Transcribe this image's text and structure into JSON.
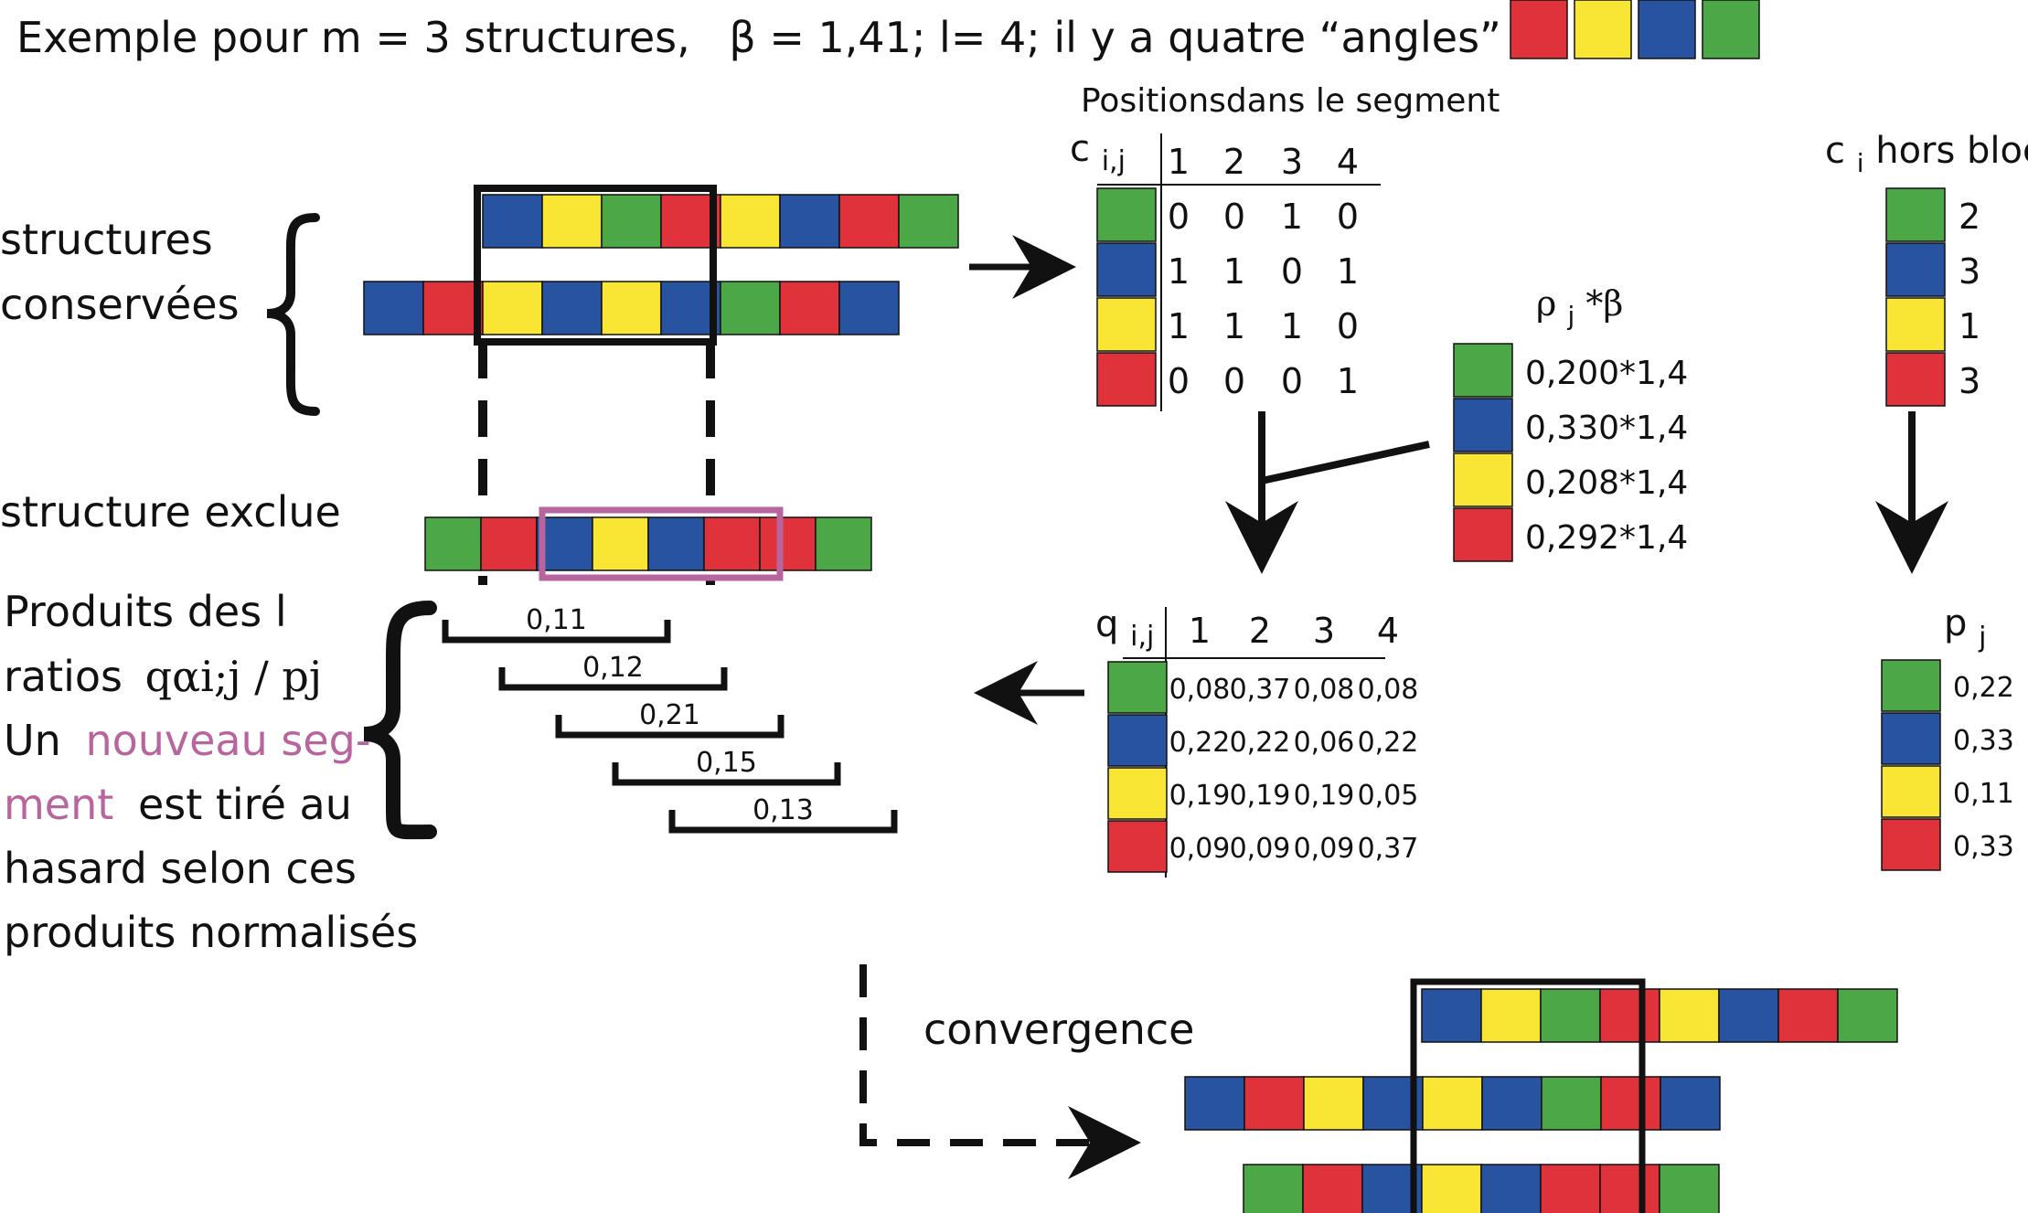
{
  "header": {
    "prefix": "Exemple pour m = 3 structures,",
    "beta_part": "β = 1,41; l= 4; il y a quatre “angles” :"
  },
  "colors": {
    "G": "#4ca846",
    "B": "#2853a0",
    "Y": "#f8e534",
    "R": "#e0323a",
    "pink": "#b8649e",
    "black": "#111111"
  },
  "header_legend": [
    "R",
    "Y",
    "B",
    "G"
  ],
  "labels": {
    "structures": [
      "structures",
      "conservées"
    ],
    "exclue": "structure exclue",
    "products": {
      "line1": "Produits des l",
      "line2_a": "ratios",
      "line2_b": "qαi;j / pj",
      "line3_a": "Un",
      "line3_pink": "nouveau seg-",
      "line4_pink": "ment",
      "line4_b": "est tiré au",
      "line5": "hasard selon ces",
      "line6": "produits normalisés"
    },
    "convergence": "convergence"
  },
  "conserved_strings": [
    [
      "B",
      "Y",
      "G",
      "R",
      "Y",
      "B",
      "R",
      "G"
    ],
    [
      "B",
      "R",
      "Y",
      "B",
      "Y",
      "B",
      "G",
      "R",
      "B"
    ]
  ],
  "excluded_string": [
    "G",
    "R",
    "B",
    "Y",
    "B",
    "R",
    "R",
    "G"
  ],
  "segment_products": [
    "0,11",
    "0,12",
    "0,21",
    "0,15",
    "0,13"
  ],
  "c_table": {
    "caption": "Positionsdans le segment",
    "corner": "c",
    "corner_sub": "i,j",
    "headers": [
      "1",
      "2",
      "3",
      "4"
    ],
    "rows": [
      {
        "color": "G",
        "values": [
          "0",
          "0",
          "1",
          "0"
        ]
      },
      {
        "color": "B",
        "values": [
          "1",
          "1",
          "0",
          "1"
        ]
      },
      {
        "color": "Y",
        "values": [
          "1",
          "1",
          "1",
          "0"
        ]
      },
      {
        "color": "R",
        "values": [
          "0",
          "0",
          "0",
          "1"
        ]
      }
    ]
  },
  "rho": {
    "label": "ρ",
    "label_sub": "j",
    "label_tail": "*β",
    "rows": [
      {
        "color": "G",
        "value": "0,200*1,4"
      },
      {
        "color": "B",
        "value": "0,330*1,4"
      },
      {
        "color": "Y",
        "value": "0,208*1,4"
      },
      {
        "color": "R",
        "value": "0,292*1,4"
      }
    ]
  },
  "c_out": {
    "label": "c",
    "label_sub": "i",
    "label_tail": " hors bloc",
    "rows": [
      {
        "color": "G",
        "value": "2"
      },
      {
        "color": "B",
        "value": "3"
      },
      {
        "color": "Y",
        "value": "1"
      },
      {
        "color": "R",
        "value": "3"
      }
    ]
  },
  "q_table": {
    "corner": "q",
    "corner_sub": "i,j",
    "headers": [
      "1",
      "2",
      "3",
      "4"
    ],
    "rows": [
      {
        "color": "G",
        "values": [
          "0,08",
          "0,37",
          "0,08",
          "0,08"
        ]
      },
      {
        "color": "B",
        "values": [
          "0,22",
          "0,22",
          "0,06",
          "0,22"
        ]
      },
      {
        "color": "Y",
        "values": [
          "0,19",
          "0,19",
          "0,19",
          "0,05"
        ]
      },
      {
        "color": "R",
        "values": [
          "0,09",
          "0,09",
          "0,09",
          "0,37"
        ]
      }
    ]
  },
  "p": {
    "label": "p",
    "label_sub": "j",
    "rows": [
      {
        "color": "G",
        "value": "0,22"
      },
      {
        "color": "B",
        "value": "0,33"
      },
      {
        "color": "Y",
        "value": "0,11"
      },
      {
        "color": "R",
        "value": "0,33"
      }
    ]
  },
  "converged_strings": [
    [
      "B",
      "Y",
      "G",
      "R",
      "Y",
      "B",
      "R",
      "G"
    ],
    [
      "B",
      "R",
      "Y",
      "B",
      "Y",
      "B",
      "G",
      "R",
      "B"
    ],
    [
      "G",
      "R",
      "B",
      "Y",
      "B",
      "R",
      "R",
      "G"
    ]
  ]
}
